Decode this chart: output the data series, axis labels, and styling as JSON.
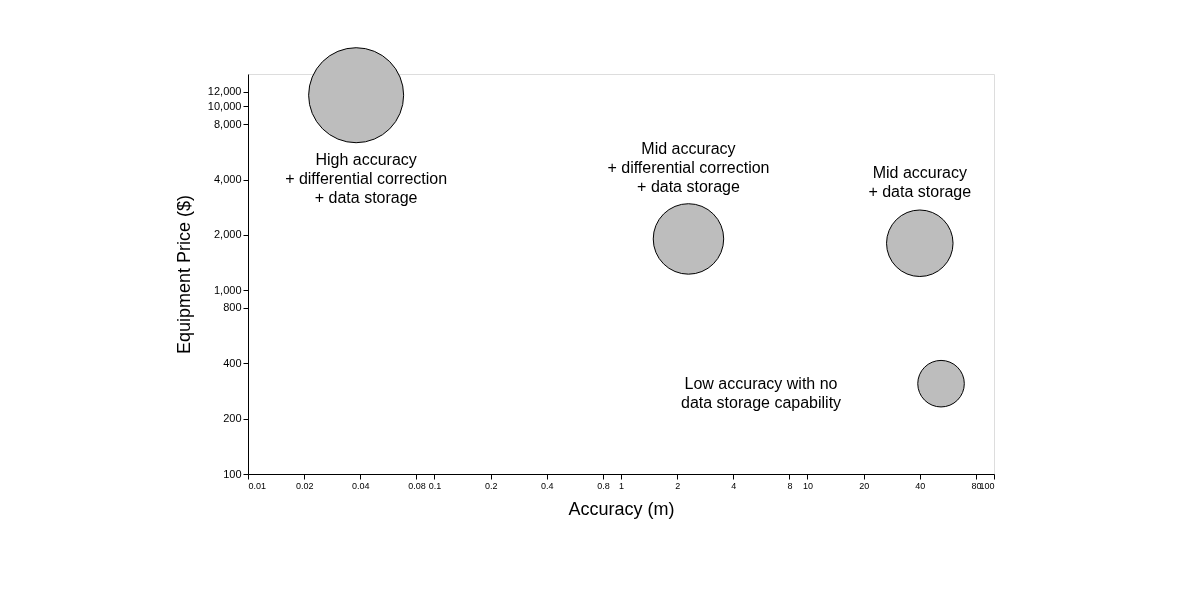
{
  "chart_data": {
    "type": "bubble",
    "xlabel": "Accuracy (m)",
    "ylabel": "Equipment Price ($)",
    "log": "xy",
    "x": [
      0.038,
      2.3,
      40,
      52
    ],
    "series": [
      {
        "color": "#bdbdbd",
        "values": [
          11500,
          1900,
          1800,
          310
        ],
        "sizes": [
          1,
          0.55,
          0.49,
          0.24
        ]
      }
    ],
    "xlim": [
      0.01,
      100
    ],
    "xticks": [
      0.01,
      0.02,
      0.04,
      0.08,
      0.1,
      0.2,
      0.4,
      0.8,
      1,
      2,
      4,
      8,
      10,
      20,
      40,
      80,
      100
    ],
    "ylim": [
      100,
      15000
    ],
    "yticks": [
      100,
      200,
      400,
      800,
      {
        "value": 1000,
        "label": "1,000"
      },
      {
        "value": 2000,
        "label": "2,000"
      },
      {
        "value": 4000,
        "label": "4,000"
      },
      {
        "value": 8000,
        "label": "8,000"
      },
      {
        "value": 10000,
        "label": "10,000"
      },
      {
        "value": 12000,
        "label": "12,000"
      }
    ],
    "annotations": [
      "High accuracy\n+ differential correction\n+ data storage",
      "Mid accuracy\n+ differential correction\n+ data storage",
      "Mid accuracy\n+ data storage",
      "Low accuracy with no\ndata storage capability"
    ],
    "grid": false
  }
}
